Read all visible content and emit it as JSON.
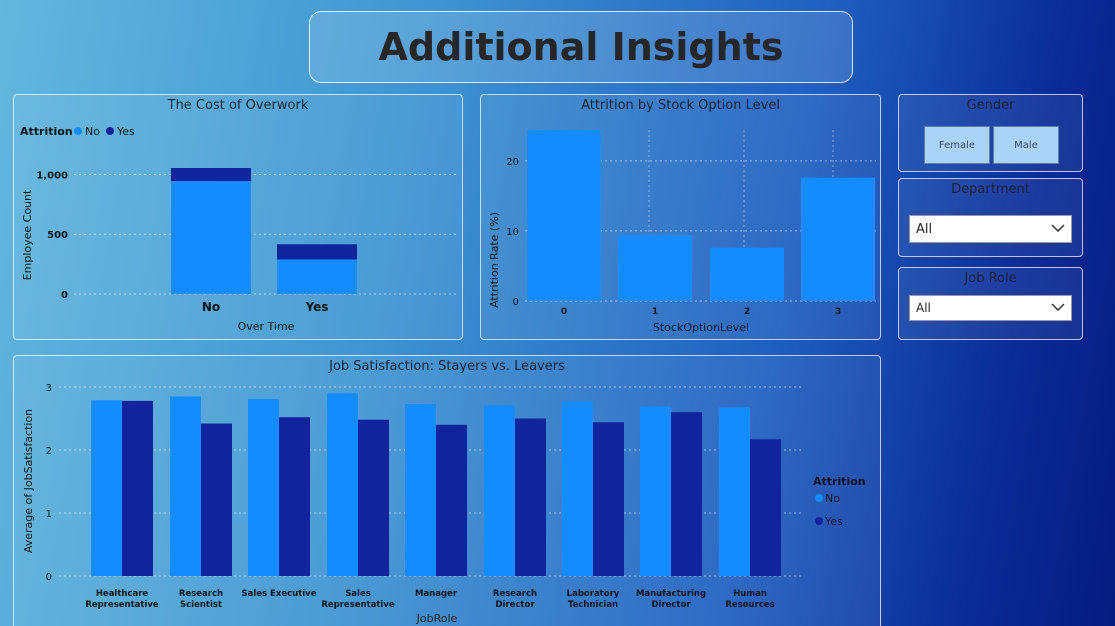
{
  "page_title": "Additional Insights",
  "overwork": {
    "title": "The Cost of Overwork",
    "legend_title": "Attrition",
    "legend": [
      {
        "label": "No",
        "color": "#128cff"
      },
      {
        "label": "Yes",
        "color": "#12239e"
      }
    ],
    "y_ticks": [
      "0",
      "500",
      "1,000"
    ],
    "ylabel": "Employee Count",
    "xlabel": "Over Time"
  },
  "stock": {
    "title": "Attrition by Stock Option Level",
    "y_ticks": [
      "0",
      "10",
      "20"
    ],
    "ylabel": "Attrition Rate (%)",
    "xlabel": "StockOptionLevel"
  },
  "satisfaction": {
    "title": "Job Satisfaction: Stayers vs. Leavers",
    "y_ticks": [
      "0",
      "1",
      "2",
      "3"
    ],
    "ylabel": "Average of JobSatisfaction",
    "xlabel": "JobRole",
    "legend_title": "Attrition",
    "legend": [
      {
        "label": "No",
        "color": "#128cff"
      },
      {
        "label": "Yes",
        "color": "#12239e"
      }
    ]
  },
  "gender": {
    "title": "Gender",
    "options": [
      "Female",
      "Male"
    ]
  },
  "department": {
    "title": "Department",
    "value": "All"
  },
  "job_role": {
    "title": "Job Role",
    "value": "All"
  },
  "chart_data": [
    {
      "type": "bar",
      "title": "The Cost of Overwork",
      "stacked": true,
      "categories": [
        "No",
        "Yes"
      ],
      "series": [
        {
          "name": "No",
          "values": [
            944,
            289
          ]
        },
        {
          "name": "Yes",
          "values": [
            110,
            127
          ]
        }
      ],
      "xlabel": "Over Time",
      "ylabel": "Employee Count",
      "ylim": [
        0,
        1054
      ],
      "legend": "top-left",
      "grid": true
    },
    {
      "type": "bar",
      "title": "Attrition by Stock Option Level",
      "categories": [
        "0",
        "1",
        "2",
        "3"
      ],
      "values": [
        24.4,
        9.4,
        7.6,
        17.6
      ],
      "xlabel": "StockOptionLevel",
      "ylabel": "Attrition Rate (%)",
      "ylim": [
        0,
        24.4
      ],
      "grid": true
    },
    {
      "type": "bar",
      "title": "Job Satisfaction: Stayers vs. Leavers",
      "categories": [
        "Healthcare Representative",
        "Research Scientist",
        "Sales Executive",
        "Sales Representative",
        "Manager",
        "Research Director",
        "Laboratory Technician",
        "Manufacturing Director",
        "Human Resources"
      ],
      "series": [
        {
          "name": "No",
          "values": [
            2.79,
            2.85,
            2.81,
            2.9,
            2.73,
            2.71,
            2.77,
            2.69,
            2.68
          ]
        },
        {
          "name": "Yes",
          "values": [
            2.78,
            2.42,
            2.52,
            2.48,
            2.4,
            2.5,
            2.44,
            2.6,
            2.17
          ]
        }
      ],
      "xlabel": "JobRole",
      "ylabel": "Average of JobSatisfaction",
      "ylim": [
        0,
        3
      ],
      "legend": "right",
      "grid": true
    }
  ]
}
